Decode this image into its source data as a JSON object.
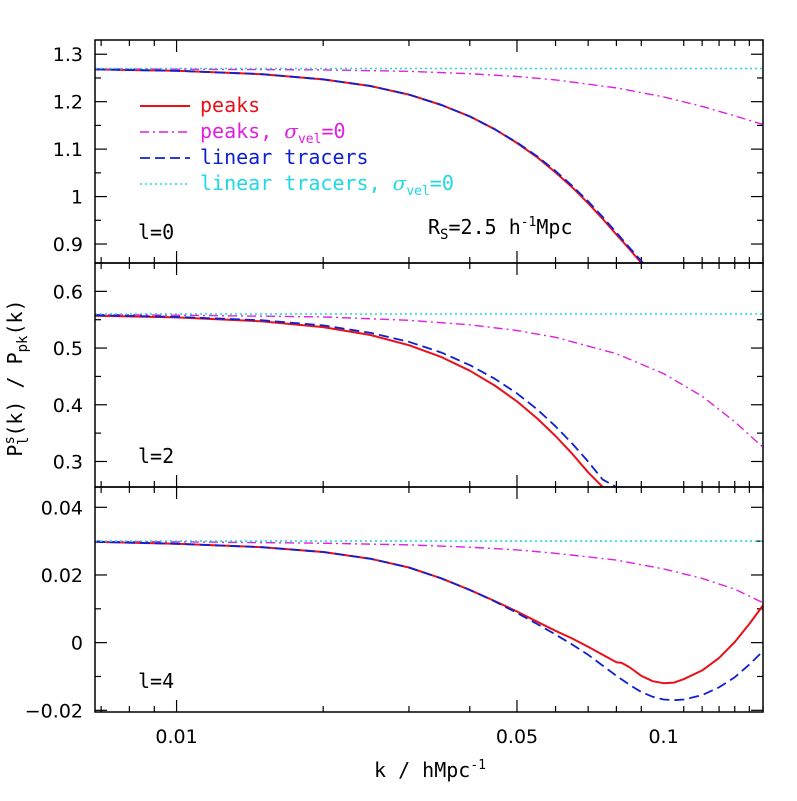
{
  "chart_data": {
    "type": "line",
    "xlabel": {
      "main": "k / hMpc",
      "sup": "-1"
    },
    "ylabel": {
      "P": "P",
      "sup": "s",
      "sub": "l",
      "arg": "(k) / P",
      "sub2": "pk",
      "end": "(k)"
    },
    "xscale": "log",
    "xlim": [
      0.0068,
      0.16
    ],
    "xticks": [
      {
        "value": 0.01,
        "label": "0.01"
      },
      {
        "value": 0.05,
        "label": "0.05"
      },
      {
        "value": 0.1,
        "label": "0.1"
      }
    ],
    "legend": {
      "placement": "upper-left of top panel",
      "entries": [
        {
          "text": "peaks",
          "sigma": "",
          "color": "#e8101a",
          "style": "solid"
        },
        {
          "text": "peaks, ",
          "sigma": "vel",
          "tail": "=0",
          "color": "#e020e0",
          "style": "dashdot"
        },
        {
          "text": "linear tracers",
          "sigma": "",
          "color": "#1020d0",
          "style": "dashed"
        },
        {
          "text": "linear tracers, ",
          "sigma": "vel",
          "tail": "=0",
          "color": "#20d8e0",
          "style": "dotted"
        }
      ]
    },
    "annotation": {
      "main": "R",
      "sub": "S",
      "rest": "=2.5 h",
      "sup": "-1",
      "end": "Mpc"
    },
    "panels": [
      {
        "label": "l=0",
        "ylim": [
          0.86,
          1.33
        ],
        "yticks": [
          {
            "value": 0.9,
            "label": "0.9"
          },
          {
            "value": 1.0,
            "label": "1"
          },
          {
            "value": 1.1,
            "label": "1.1"
          },
          {
            "value": 1.2,
            "label": "1.2"
          },
          {
            "value": 1.3,
            "label": "1.3"
          }
        ],
        "series": [
          {
            "name": "peaks",
            "x": [
              0.0068,
              0.01,
              0.015,
              0.02,
              0.025,
              0.03,
              0.035,
              0.04,
              0.045,
              0.05,
              0.055,
              0.06,
              0.065,
              0.07,
              0.075,
              0.08,
              0.085,
              0.09,
              0.095,
              0.1,
              0.103
            ],
            "y": [
              1.268,
              1.265,
              1.258,
              1.247,
              1.233,
              1.215,
              1.193,
              1.169,
              1.142,
              1.113,
              1.083,
              1.051,
              1.019,
              0.986,
              0.953,
              0.92,
              0.89,
              0.86,
              0.84,
              0.85,
              0.86
            ]
          },
          {
            "name": "peaks, sigma_vel=0",
            "x": [
              0.0068,
              0.01,
              0.02,
              0.03,
              0.04,
              0.05,
              0.06,
              0.08,
              0.1,
              0.12,
              0.14,
              0.16
            ],
            "y": [
              1.269,
              1.2685,
              1.267,
              1.264,
              1.259,
              1.253,
              1.246,
              1.229,
              1.21,
              1.19,
              1.17,
              1.152
            ]
          },
          {
            "name": "linear tracers",
            "x": [
              0.0068,
              0.01,
              0.015,
              0.02,
              0.025,
              0.03,
              0.035,
              0.04,
              0.045,
              0.05,
              0.055,
              0.06,
              0.065,
              0.07,
              0.075,
              0.08,
              0.085,
              0.09,
              0.095,
              0.1,
              0.104
            ],
            "y": [
              1.268,
              1.265,
              1.258,
              1.247,
              1.233,
              1.215,
              1.193,
              1.169,
              1.142,
              1.114,
              1.085,
              1.054,
              1.022,
              0.99,
              0.957,
              0.924,
              0.893,
              0.864,
              0.84,
              0.85,
              0.86
            ]
          },
          {
            "name": "linear tracers, sigma_vel=0",
            "x": [
              0.0068,
              0.16
            ],
            "y": [
              1.27,
              1.27
            ]
          }
        ]
      },
      {
        "label": "l=2",
        "ylim": [
          0.255,
          0.65
        ],
        "yticks": [
          {
            "value": 0.3,
            "label": "0.3"
          },
          {
            "value": 0.4,
            "label": "0.4"
          },
          {
            "value": 0.5,
            "label": "0.5"
          },
          {
            "value": 0.6,
            "label": "0.6"
          }
        ],
        "series": [
          {
            "name": "peaks",
            "x": [
              0.0068,
              0.01,
              0.015,
              0.02,
              0.025,
              0.03,
              0.035,
              0.04,
              0.045,
              0.05,
              0.055,
              0.06,
              0.065,
              0.07,
              0.075,
              0.078
            ],
            "y": [
              0.557,
              0.554,
              0.547,
              0.537,
              0.523,
              0.505,
              0.484,
              0.46,
              0.434,
              0.406,
              0.376,
              0.345,
              0.313,
              0.281,
              0.255,
              0.244
            ]
          },
          {
            "name": "peaks, sigma_vel=0",
            "x": [
              0.0068,
              0.01,
              0.02,
              0.03,
              0.04,
              0.05,
              0.06,
              0.08,
              0.1,
              0.12,
              0.14,
              0.16
            ],
            "y": [
              0.559,
              0.558,
              0.555,
              0.549,
              0.541,
              0.531,
              0.519,
              0.49,
              0.455,
              0.415,
              0.37,
              0.325
            ]
          },
          {
            "name": "linear tracers",
            "x": [
              0.0068,
              0.01,
              0.015,
              0.02,
              0.025,
              0.03,
              0.035,
              0.04,
              0.045,
              0.05,
              0.055,
              0.06,
              0.065,
              0.07,
              0.075,
              0.08,
              0.083
            ],
            "y": [
              0.558,
              0.555,
              0.549,
              0.54,
              0.527,
              0.511,
              0.492,
              0.47,
              0.446,
              0.42,
              0.392,
              0.362,
              0.331,
              0.3,
              0.268,
              0.255,
              0.244
            ]
          },
          {
            "name": "linear tracers, sigma_vel=0",
            "x": [
              0.0068,
              0.16
            ],
            "y": [
              0.56,
              0.56
            ]
          }
        ]
      },
      {
        "label": "l=4",
        "ylim": [
          -0.0205,
          0.046
        ],
        "yticks": [
          {
            "value": -0.02,
            "label": "−0.02"
          },
          {
            "value": 0.0,
            "label": "0"
          },
          {
            "value": 0.02,
            "label": "0.02"
          },
          {
            "value": 0.04,
            "label": "0.04"
          }
        ],
        "series": [
          {
            "name": "peaks",
            "x": [
              0.0068,
              0.01,
              0.015,
              0.02,
              0.025,
              0.03,
              0.035,
              0.04,
              0.045,
              0.05,
              0.055,
              0.06,
              0.065,
              0.07,
              0.075,
              0.08,
              0.082,
              0.085,
              0.09,
              0.095,
              0.1,
              0.105,
              0.11,
              0.12,
              0.13,
              0.14,
              0.15,
              0.16
            ],
            "y": [
              0.0298,
              0.0292,
              0.0282,
              0.0268,
              0.0248,
              0.0222,
              0.019,
              0.0156,
              0.0123,
              0.0092,
              0.0062,
              0.0035,
              0.0012,
              -0.0012,
              -0.0036,
              -0.0058,
              -0.006,
              -0.0072,
              -0.0098,
              -0.0114,
              -0.012,
              -0.0118,
              -0.0108,
              -0.0082,
              -0.0045,
              0.0002,
              0.0055,
              0.011
            ]
          },
          {
            "name": "peaks, sigma_vel=0",
            "x": [
              0.0068,
              0.01,
              0.02,
              0.03,
              0.04,
              0.05,
              0.06,
              0.08,
              0.1,
              0.12,
              0.14,
              0.16
            ],
            "y": [
              0.0299,
              0.0298,
              0.0294,
              0.0289,
              0.0282,
              0.0274,
              0.0264,
              0.0244,
              0.0218,
              0.019,
              0.0158,
              0.0118
            ]
          },
          {
            "name": "linear tracers",
            "x": [
              0.0068,
              0.01,
              0.015,
              0.02,
              0.025,
              0.03,
              0.035,
              0.04,
              0.045,
              0.05,
              0.055,
              0.06,
              0.065,
              0.07,
              0.075,
              0.08,
              0.085,
              0.09,
              0.095,
              0.1,
              0.105,
              0.11,
              0.12,
              0.13,
              0.14,
              0.15,
              0.16
            ],
            "y": [
              0.0298,
              0.0292,
              0.0282,
              0.0268,
              0.0248,
              0.0222,
              0.019,
              0.0156,
              0.0122,
              0.0088,
              0.0055,
              0.0024,
              -0.0006,
              -0.0036,
              -0.0068,
              -0.0098,
              -0.0124,
              -0.0146,
              -0.016,
              -0.0168,
              -0.017,
              -0.0168,
              -0.0155,
              -0.0132,
              -0.0102,
              -0.0065,
              -0.0025
            ]
          },
          {
            "name": "linear tracers, sigma_vel=0",
            "x": [
              0.0068,
              0.16
            ],
            "y": [
              0.03,
              0.03
            ]
          }
        ]
      }
    ]
  }
}
